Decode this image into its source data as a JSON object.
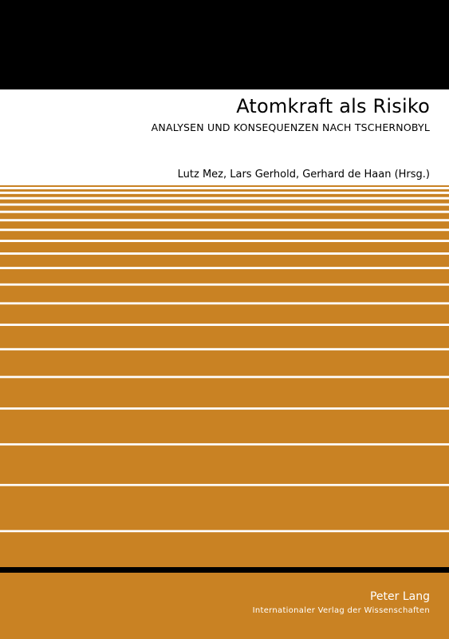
{
  "book": {
    "title": "Atomkraft als Risiko",
    "subtitle": "ANALYSEN UND KONSEQUENZEN NACH TSCHERNOBYL",
    "editors": "Lutz Mez, Lars Gerhold, Gerhard de Haan (Hrsg.)",
    "publisher": "Peter Lang",
    "publisher_tagline": "Internationaler Verlag der Wissenschaften"
  },
  "colors": {
    "top_band": "#000000",
    "stripe": "#c98223",
    "stripe_gap": "#ffffff",
    "rule": "#000000"
  }
}
